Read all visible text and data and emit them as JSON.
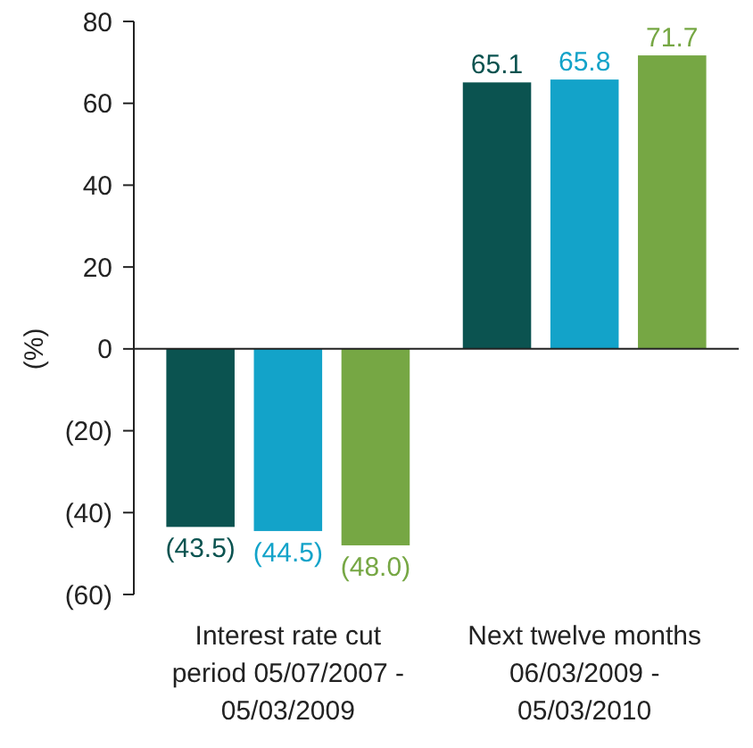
{
  "chart_data": {
    "type": "bar",
    "ylabel": "(%)",
    "categories": [
      "Interest rate cut period 05/07/2007 - 05/03/2009",
      "Next twelve months 06/03/2009 - 05/03/2010"
    ],
    "series": [
      {
        "color": "#0b5350",
        "values": [
          -43.5,
          65.1
        ],
        "value_labels": [
          "(43.5)",
          "65.1"
        ]
      },
      {
        "color": "#13a3c9",
        "values": [
          -44.5,
          65.8
        ],
        "value_labels": [
          "(44.5)",
          "65.8"
        ]
      },
      {
        "color": "#76a744",
        "values": [
          -48.0,
          71.7
        ],
        "value_labels": [
          "(48.0)",
          "71.7"
        ]
      }
    ],
    "ylim": [
      -60,
      80
    ],
    "yticks": [
      80,
      60,
      40,
      20,
      0,
      {
        "value": -20,
        "label": "(20)"
      },
      {
        "value": -40,
        "label": "(40)"
      },
      {
        "value": -60,
        "label": "(60)"
      }
    ]
  }
}
